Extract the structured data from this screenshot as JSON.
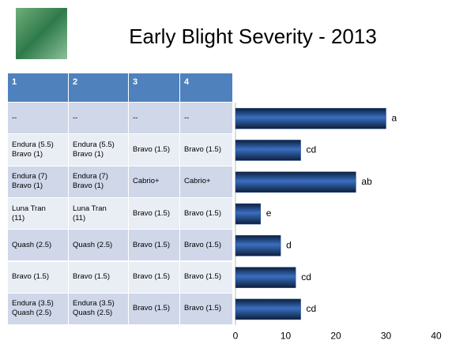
{
  "title": "Early Blight Severity - 2013",
  "table": {
    "header": [
      "1",
      "2",
      "3",
      "4"
    ],
    "rows": [
      [
        [
          "--"
        ],
        [
          "--"
        ],
        [
          "--"
        ],
        [
          "--"
        ]
      ],
      [
        [
          "Endura (5.5)",
          "Bravo (1)"
        ],
        [
          "Endura (5.5)",
          "Bravo (1)"
        ],
        [
          "Bravo (1.5)"
        ],
        [
          "Bravo (1.5)"
        ]
      ],
      [
        [
          "Endura (7)",
          "Bravo (1)"
        ],
        [
          "Endura (7)",
          "Bravo (1)"
        ],
        [
          "Cabrio+"
        ],
        [
          "Cabrio+"
        ]
      ],
      [
        [
          "Luna Tran",
          "(11)"
        ],
        [
          "Luna Tran",
          "(11)"
        ],
        [
          "Bravo (1.5)"
        ],
        [
          "Bravo (1.5)"
        ]
      ],
      [
        [
          "Quash (2.5)"
        ],
        [
          "Quash (2.5)"
        ],
        [
          "Bravo (1.5)"
        ],
        [
          "Bravo (1.5)"
        ]
      ],
      [
        [
          "Bravo (1.5)"
        ],
        [
          "Bravo (1.5)"
        ],
        [
          "Bravo (1.5)"
        ],
        [
          "Bravo (1.5)"
        ]
      ],
      [
        [
          "Endura (3.5)",
          "Quash (2.5)"
        ],
        [
          "Endura (3.5)",
          "Quash (2.5)"
        ],
        [
          "Bravo (1.5)"
        ],
        [
          "Bravo (1.5)"
        ]
      ]
    ]
  },
  "chart_data": {
    "type": "barh",
    "values": [
      30,
      13,
      24,
      5,
      9,
      12,
      13
    ],
    "annotations": [
      "a",
      "cd",
      "ab",
      "e",
      "d",
      "cd",
      "cd"
    ],
    "color": "#1f4e8f",
    "xlim": [
      0,
      40
    ],
    "xticks": [
      0,
      10,
      20,
      30,
      40
    ]
  }
}
